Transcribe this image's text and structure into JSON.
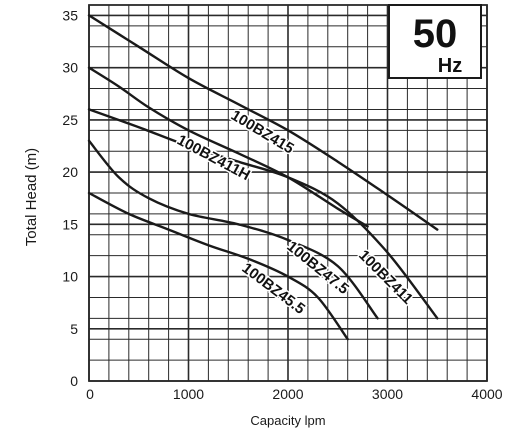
{
  "chart_data": {
    "type": "line",
    "xlabel": "Capacity lpm",
    "ylabel": "Total Head (m)",
    "xlim": [
      0,
      4000
    ],
    "ylim": [
      0,
      36
    ],
    "x_ticks": [
      "0",
      "1000",
      "2000",
      "3000",
      "4000"
    ],
    "y_ticks": [
      "0",
      "5",
      "10",
      "15",
      "20",
      "25",
      "30",
      "35"
    ],
    "grid": true,
    "badge": {
      "value": "50",
      "unit": "Hz"
    },
    "colors": {
      "line": "#1a1a1a",
      "grid": "#2a2a2a"
    },
    "series": [
      {
        "name": "100BZ415",
        "x": [
          0,
          500,
          1000,
          1500,
          2000,
          2500,
          3000,
          3500
        ],
        "y": [
          35,
          32,
          29,
          26.5,
          24,
          21,
          17.8,
          14.5
        ]
      },
      {
        "name": "100BZ411H",
        "x": [
          0,
          300,
          600,
          1000,
          1500,
          2000,
          2500,
          2800
        ],
        "y": [
          30,
          28.2,
          26.2,
          24,
          21.8,
          19.5,
          16.5,
          14.8
        ]
      },
      {
        "name": "100BZ411",
        "x": [
          0,
          500,
          1000,
          1500,
          2000,
          2500,
          3000,
          3500
        ],
        "y": [
          26,
          24.3,
          22.5,
          21,
          19.5,
          17,
          12.3,
          6
        ]
      },
      {
        "name": "100BZ47.5",
        "x": [
          0,
          300,
          600,
          1000,
          1500,
          2000,
          2500,
          2900
        ],
        "y": [
          23,
          19.5,
          17.5,
          16,
          15,
          13.5,
          11,
          6
        ]
      },
      {
        "name": "100BZ45.5",
        "x": [
          0,
          400,
          800,
          1200,
          1600,
          2000,
          2300,
          2600
        ],
        "y": [
          18,
          16,
          14.5,
          13,
          11.7,
          10,
          8,
          4
        ]
      }
    ]
  }
}
